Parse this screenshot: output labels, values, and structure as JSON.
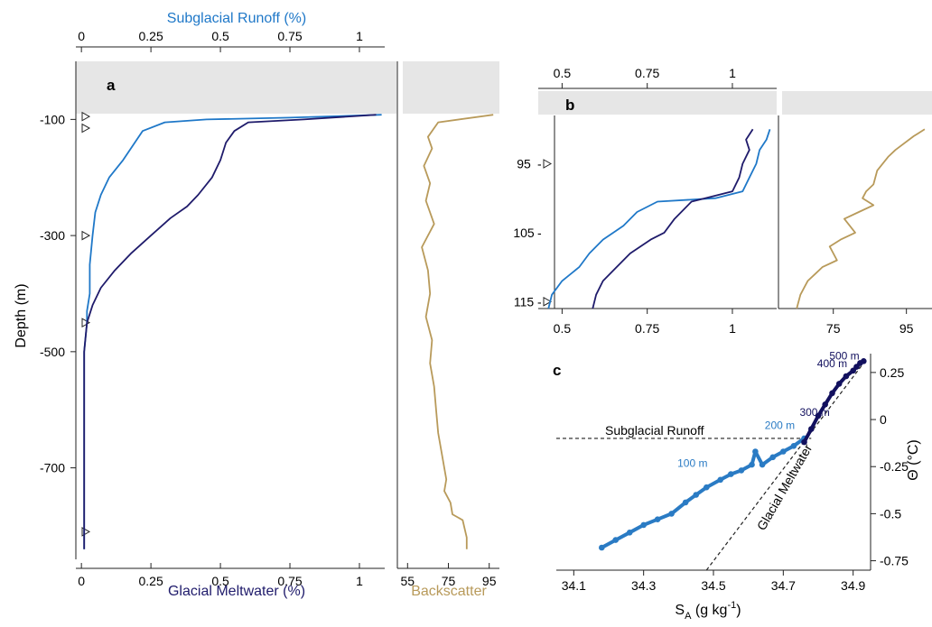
{
  "colors": {
    "runoff": "#1f78c8",
    "meltwater": "#1f1b6b",
    "backscatter": "#b89a5a",
    "ts_light": "#2a7bc4",
    "ts_dark": "#12105e",
    "shade": "#e6e6e6",
    "axis": "#222222"
  },
  "chart_data": [
    {
      "panel": "a",
      "type": "line",
      "label": "a",
      "top_label": "Subglacial Runoff (%)",
      "xlabel": "Glacial Meltwater (%)",
      "ylabel": "Depth (m)",
      "xticks": [
        0,
        0.25,
        0.5,
        0.75,
        1
      ],
      "top_ticks": [
        "0",
        "0.25",
        "0.5",
        "0.75",
        "1"
      ],
      "bottom_ticks": [
        "0",
        "0.25",
        "0.5",
        "0.75",
        "1"
      ],
      "yticks": [
        -100,
        -300,
        -500,
        -700
      ],
      "xlim": [
        -0.02,
        1.13
      ],
      "ylim": [
        -870,
        0
      ],
      "markers": [
        -95,
        -115,
        -300,
        -450,
        -810
      ],
      "series": [
        {
          "key": "runoff",
          "x": [
            1.08,
            0.75,
            0.45,
            0.3,
            0.22,
            0.15,
            0.1,
            0.07,
            0.05,
            0.04,
            0.03,
            0.03,
            0.02,
            0.02,
            0.01,
            0.01,
            0.01,
            0.01,
            0.01
          ],
          "y": [
            -92,
            -97,
            -100,
            -105,
            -120,
            -170,
            -200,
            -230,
            -260,
            -300,
            -350,
            -400,
            -430,
            -450,
            -500,
            -600,
            -700,
            -800,
            -840
          ]
        },
        {
          "key": "meltwater",
          "x": [
            1.06,
            0.8,
            0.6,
            0.55,
            0.52,
            0.5,
            0.47,
            0.42,
            0.38,
            0.32,
            0.25,
            0.18,
            0.12,
            0.07,
            0.04,
            0.02,
            0.01,
            0.01,
            0.01
          ],
          "y": [
            -92,
            -100,
            -105,
            -120,
            -140,
            -170,
            -200,
            -230,
            -250,
            -270,
            -300,
            -330,
            -360,
            -390,
            -420,
            -450,
            -500,
            -700,
            -840
          ]
        }
      ]
    },
    {
      "panel": "a-backscatter",
      "type": "line",
      "xlabel": "Backscatter",
      "bottom_ticks": [
        "55",
        "75",
        "95"
      ],
      "xticks": [
        55,
        75,
        95
      ],
      "xlim": [
        50,
        100
      ],
      "ylim": [
        -870,
        0
      ],
      "series": [
        {
          "key": "backscatter",
          "x": [
            97,
            70,
            65,
            67,
            63,
            66,
            64,
            68,
            62,
            65,
            66,
            64,
            67,
            66,
            68,
            69,
            70,
            72,
            74,
            73,
            76,
            77,
            82,
            84,
            84
          ],
          "y": [
            -92,
            -105,
            -130,
            -150,
            -180,
            -210,
            -240,
            -280,
            -320,
            -360,
            -400,
            -440,
            -480,
            -520,
            -560,
            -600,
            -640,
            -680,
            -720,
            -740,
            -760,
            -780,
            -790,
            -820,
            -840
          ]
        }
      ]
    },
    {
      "panel": "b",
      "type": "line",
      "label": "b",
      "top_ticks": [
        "0.5",
        "0.75",
        "1"
      ],
      "bottom_ticks": [
        "0.5",
        "0.75",
        "1"
      ],
      "xticks": [
        0.5,
        0.75,
        1
      ],
      "ytick_labels": [
        "95",
        "105",
        "115"
      ],
      "yticks": [
        95,
        105,
        115
      ],
      "xlim": [
        0.43,
        1.13
      ],
      "ylim": [
        116,
        88
      ],
      "markers": [
        95,
        115
      ],
      "series": [
        {
          "key": "runoff",
          "x": [
            1.11,
            1.1,
            1.08,
            1.07,
            1.05,
            1.03,
            0.95,
            0.78,
            0.72,
            0.68,
            0.62,
            0.58,
            0.55,
            0.5,
            0.47,
            0.46
          ],
          "y": [
            90,
            91.5,
            93,
            95,
            97,
            99,
            100,
            100.5,
            102,
            104,
            106,
            108,
            110,
            112,
            114,
            116
          ]
        },
        {
          "key": "meltwater",
          "x": [
            1.06,
            1.04,
            1.05,
            1.03,
            1.02,
            1.0,
            0.92,
            0.88,
            0.85,
            0.83,
            0.8,
            0.76,
            0.7,
            0.66,
            0.62,
            0.6,
            0.59
          ],
          "y": [
            90,
            91.5,
            93,
            95,
            97,
            99,
            100,
            100.5,
            102,
            103,
            105,
            106,
            108,
            110,
            112,
            114,
            116
          ]
        }
      ]
    },
    {
      "panel": "b-backscatter",
      "type": "line",
      "bottom_ticks": [
        "75",
        "95"
      ],
      "xticks": [
        75,
        95
      ],
      "xlim": [
        60,
        102
      ],
      "ylim": [
        116,
        88
      ],
      "series": [
        {
          "key": "backscatter",
          "x": [
            100,
            97,
            92,
            90,
            87,
            86,
            84,
            83,
            86,
            82,
            78,
            81,
            77,
            74,
            76,
            72,
            70,
            68,
            66,
            65
          ],
          "y": [
            90,
            91,
            93,
            94,
            96,
            98,
            99,
            100,
            101,
            102,
            103,
            105,
            106,
            107,
            109,
            110,
            111,
            112,
            114,
            116
          ]
        }
      ]
    },
    {
      "panel": "c",
      "type": "scatter",
      "label": "c",
      "xlabel_main": "S",
      "xlabel_sub": "A",
      "xlabel_unit": " (g kg",
      "xlabel_exp": "-1",
      "xlabel_close": ")",
      "ylabel": "Θ (°C)",
      "xticks": [
        34.1,
        34.3,
        34.5,
        34.7,
        34.9
      ],
      "xtick_labels": [
        "34.1",
        "34.3",
        "34.5",
        "34.7",
        "34.9"
      ],
      "yticks": [
        0.25,
        0,
        -0.25,
        -0.5,
        -0.75
      ],
      "ytick_labels": [
        "0.25",
        "0",
        "-0.25",
        "-0.5",
        "-0.75"
      ],
      "xlim": [
        34.05,
        34.95
      ],
      "ylim": [
        -0.8,
        0.35
      ],
      "line_runoff_label": "Subglacial Runoff",
      "line_melt_label": "Glacial Meltwater",
      "runoff_line": {
        "x": [
          34.05,
          34.78
        ],
        "y": [
          -0.1,
          -0.1
        ]
      },
      "melt_line": {
        "x": [
          34.48,
          34.93
        ],
        "y": [
          -0.8,
          0.3
        ]
      },
      "depth_labels": [
        {
          "text": "500 m",
          "x": 34.875,
          "y": 0.3
        },
        {
          "text": "400 m",
          "x": 34.84,
          "y": 0.26
        },
        {
          "text": "300 m",
          "x": 34.79,
          "y": 0.0
        },
        {
          "text": "200 m",
          "x": 34.69,
          "y": -0.07
        },
        {
          "text": "100 m",
          "x": 34.44,
          "y": -0.27
        }
      ],
      "series": [
        {
          "key": "ts_light",
          "x": [
            34.18,
            34.22,
            34.26,
            34.3,
            34.34,
            34.38,
            34.42,
            34.45,
            34.48,
            34.52,
            34.55,
            34.58,
            34.61,
            34.62,
            34.64,
            34.67,
            34.7,
            34.73,
            34.76
          ],
          "y": [
            -0.68,
            -0.64,
            -0.6,
            -0.56,
            -0.53,
            -0.5,
            -0.44,
            -0.4,
            -0.36,
            -0.32,
            -0.29,
            -0.27,
            -0.24,
            -0.17,
            -0.24,
            -0.2,
            -0.17,
            -0.14,
            -0.1
          ]
        },
        {
          "key": "ts_dark",
          "x": [
            34.76,
            34.78,
            34.8,
            34.82,
            34.84,
            34.86,
            34.88,
            34.9,
            34.91,
            34.92,
            34.93
          ],
          "y": [
            -0.12,
            -0.05,
            0.02,
            0.08,
            0.14,
            0.19,
            0.23,
            0.26,
            0.28,
            0.3,
            0.31
          ]
        }
      ]
    }
  ]
}
